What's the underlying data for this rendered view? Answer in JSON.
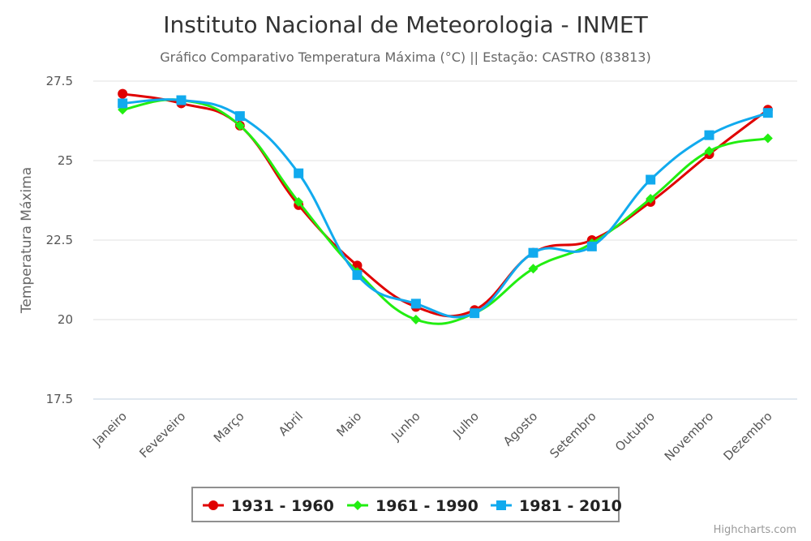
{
  "chart_data": {
    "type": "line",
    "title": "Instituto Nacional de Meteorologia - INMET",
    "subtitle": "Gráfico Comparativo Temperatura Máxima (°C) || Estação: CASTRO (83813)",
    "ylabel": "Temperatura Máxima",
    "xlabel": "",
    "ylim": [
      17.5,
      27.5
    ],
    "yticks": [
      "17.5",
      "20",
      "22.5",
      "25",
      "27.5"
    ],
    "grid": true,
    "smooth": true,
    "legend_position": "bottom-center",
    "categories": [
      "Janeiro",
      "Feveveiro",
      "Março",
      "Abril",
      "Maio",
      "Junho",
      "Julho",
      "Agosto",
      "Setembro",
      "Outubro",
      "Novembro",
      "Dezembro"
    ],
    "series": [
      {
        "name": "1931 - 1960",
        "color": "#e00000",
        "marker": "circle",
        "values": [
          27.1,
          26.8,
          26.1,
          23.6,
          21.7,
          20.4,
          20.3,
          22.1,
          22.5,
          23.7,
          25.2,
          26.6
        ]
      },
      {
        "name": "1961 - 1990",
        "color": "#22ee11",
        "marker": "diamond",
        "values": [
          26.6,
          26.9,
          26.1,
          23.7,
          21.5,
          20.0,
          20.2,
          21.6,
          22.4,
          23.8,
          25.3,
          25.7
        ]
      },
      {
        "name": "1981 - 2010",
        "color": "#11aaee",
        "marker": "square",
        "values": [
          26.8,
          26.9,
          26.4,
          24.6,
          21.4,
          20.5,
          20.2,
          22.1,
          22.3,
          24.4,
          25.8,
          26.5
        ]
      }
    ]
  },
  "credits": "Highcharts.com"
}
